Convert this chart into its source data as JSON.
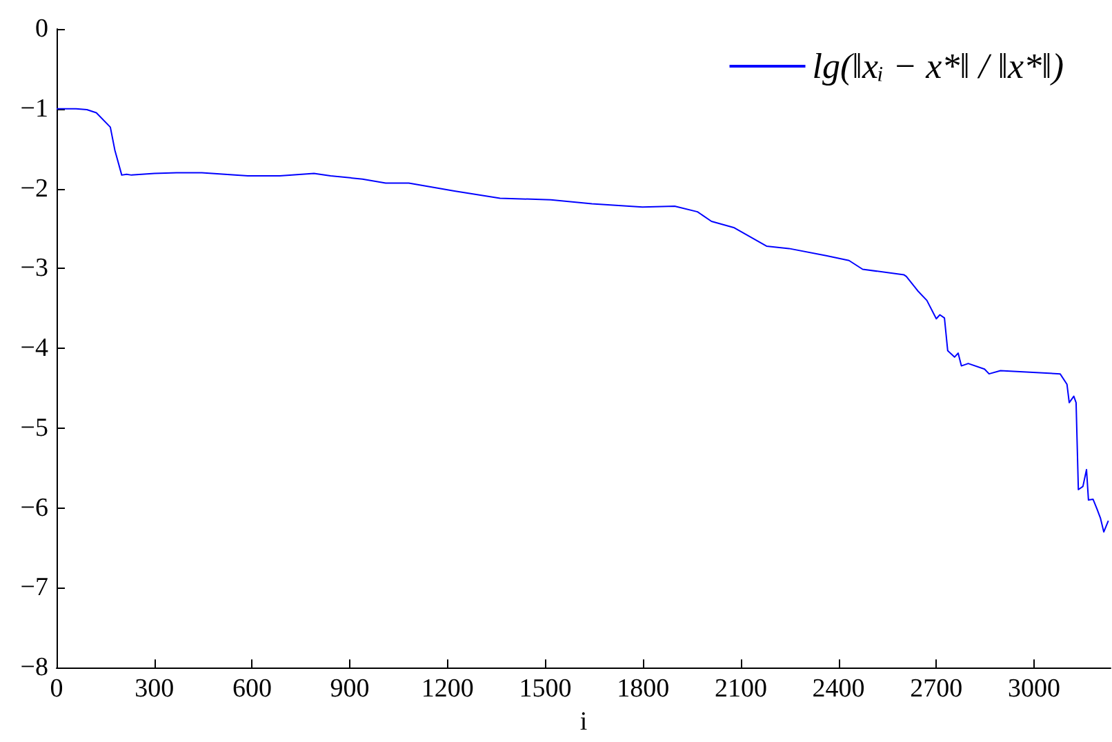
{
  "chart_data": {
    "type": "line",
    "xlabel": "i",
    "legend": "top right",
    "grid": false,
    "marker": "none",
    "line_style": "solid",
    "xlim": [
      0,
      3235
    ],
    "xticks": [
      0,
      300,
      600,
      900,
      1200,
      1500,
      1800,
      2100,
      2400,
      2700,
      3000
    ],
    "ylim": [
      -8,
      0
    ],
    "yticks": [
      -8,
      -7,
      -6,
      -5,
      -4,
      -3,
      -2,
      -1,
      0
    ],
    "series": [
      {
        "name": "lg(‖xᵢ − x*‖ / ‖x*‖)",
        "color": "#0000ff",
        "x": [
          0,
          60,
          93,
          122,
          165,
          179,
          200,
          215,
          230,
          300,
          376,
          446,
          587,
          685,
          790,
          841,
          939,
          1010,
          1081,
          1221,
          1361,
          1517,
          1643,
          1798,
          1897,
          1967,
          2010,
          2080,
          2179,
          2248,
          2362,
          2432,
          2474,
          2601,
          2608,
          2643,
          2671,
          2700,
          2711,
          2725,
          2735,
          2756,
          2767,
          2777,
          2798,
          2848,
          2862,
          2897,
          3080,
          3101,
          3108,
          3122,
          3129,
          3136,
          3150,
          3161,
          3167,
          3181,
          3193,
          3204,
          3214,
          3228
        ],
        "values": [
          -1.0,
          -1.0,
          -1.01,
          -1.05,
          -1.23,
          -1.52,
          -1.83,
          -1.82,
          -1.83,
          -1.81,
          -1.8,
          -1.8,
          -1.84,
          -1.84,
          -1.81,
          -1.84,
          -1.88,
          -1.93,
          -1.93,
          -2.03,
          -2.12,
          -2.14,
          -2.19,
          -2.23,
          -2.22,
          -2.29,
          -2.41,
          -2.49,
          -2.72,
          -2.75,
          -2.84,
          -2.9,
          -3.01,
          -3.08,
          -3.1,
          -3.28,
          -3.4,
          -3.63,
          -3.58,
          -3.62,
          -4.03,
          -4.11,
          -4.06,
          -4.22,
          -4.19,
          -4.26,
          -4.32,
          -4.28,
          -4.32,
          -4.45,
          -4.68,
          -4.6,
          -4.68,
          -5.77,
          -5.73,
          -5.52,
          -5.9,
          -5.89,
          -6.01,
          -6.13,
          -6.3,
          -6.16
        ]
      }
    ]
  }
}
